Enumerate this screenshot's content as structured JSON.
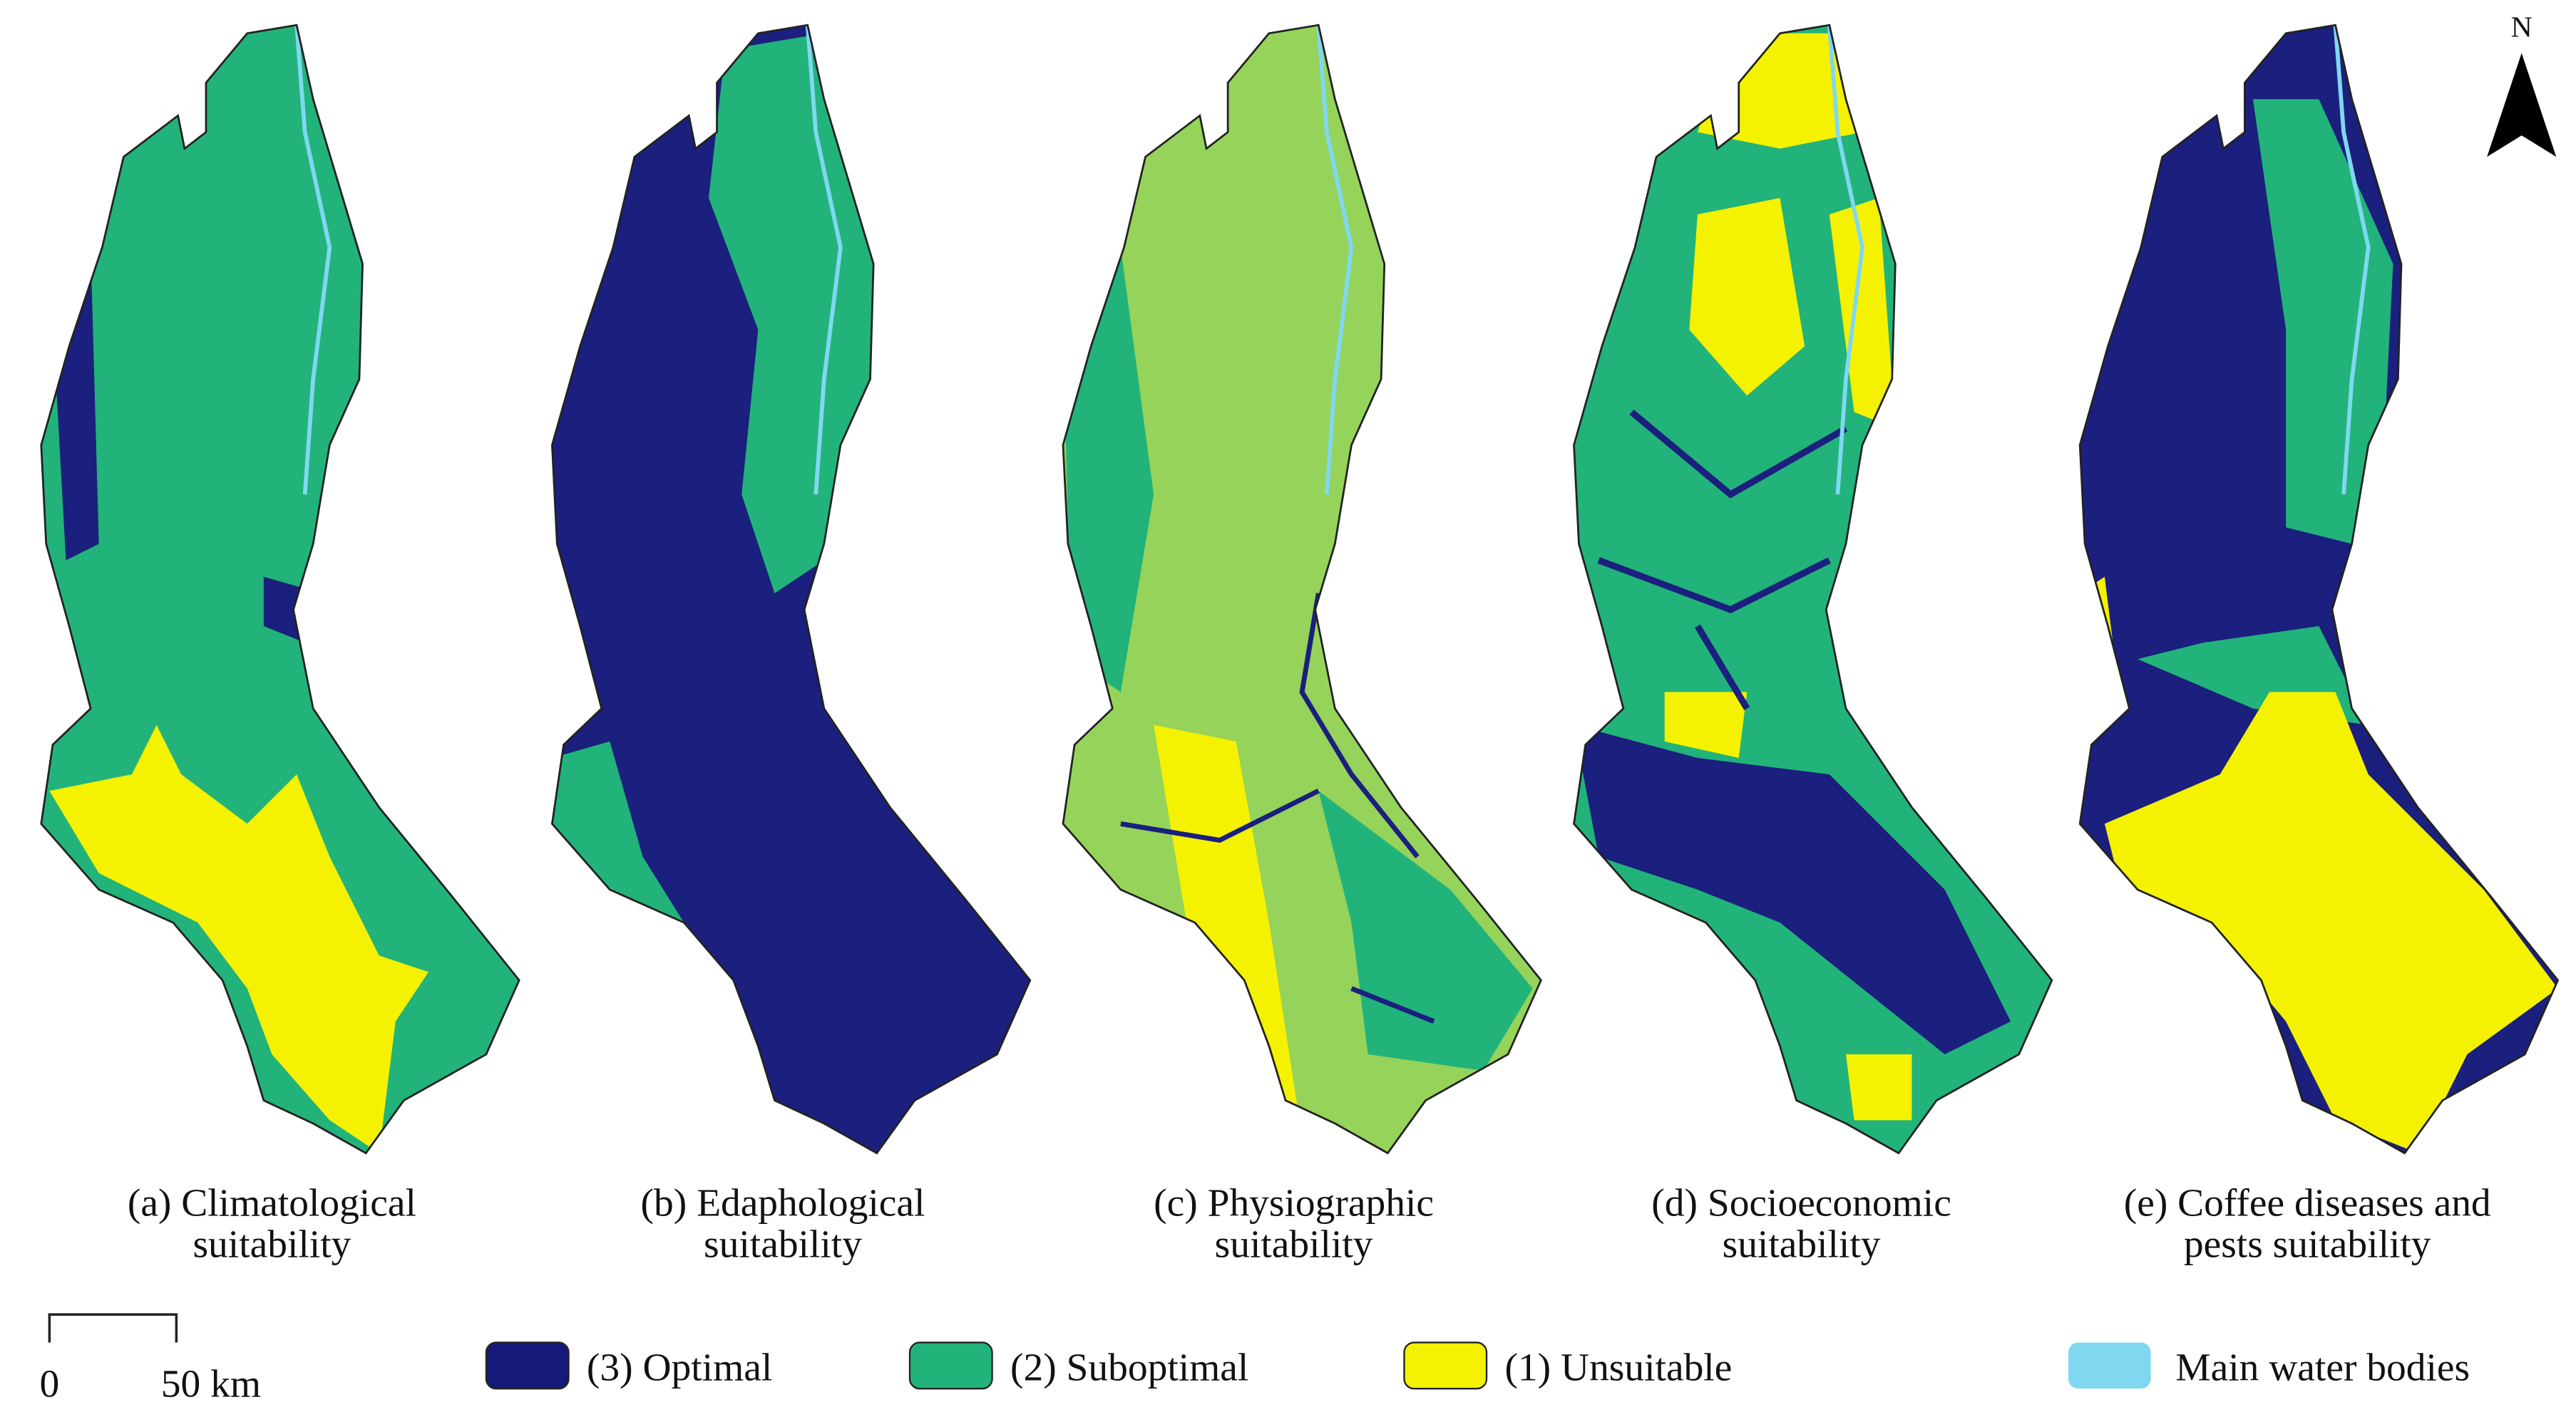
{
  "panels": [
    {
      "caption": [
        "(a) Climatological",
        "suitability"
      ]
    },
    {
      "caption": [
        "(b) Edaphological",
        "suitability"
      ]
    },
    {
      "caption": [
        "(c) Physiographic",
        "suitability"
      ]
    },
    {
      "caption": [
        "(d) Socioeconomic",
        "suitability"
      ]
    },
    {
      "caption": [
        "(e) Coffee diseases and",
        "pests suitability"
      ]
    }
  ],
  "legend": {
    "items": [
      "(3) Optimal",
      "(2) Suboptimal",
      "(1) Unsuitable",
      "Main water bodies"
    ]
  },
  "scale_bar": {
    "start": "0",
    "end": "50 km"
  },
  "north": "N"
}
